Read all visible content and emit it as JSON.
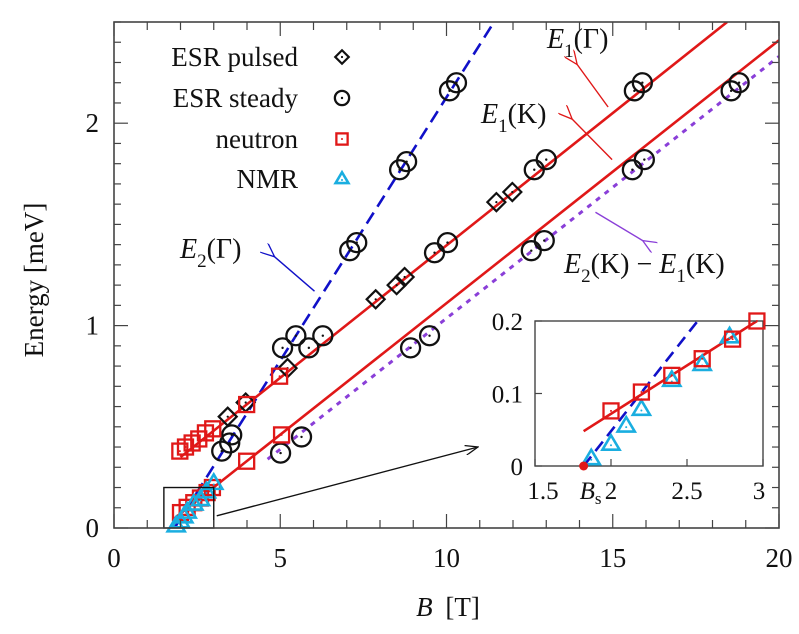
{
  "chart_data": {
    "type": "scatter",
    "title": "",
    "xlabel_symbol": "B",
    "xlabel_unit": "[T]",
    "ylabel": "Energy [meV]",
    "xlim": [
      0,
      20
    ],
    "ylim": [
      0,
      2.5
    ],
    "x_ticks": [
      0,
      5,
      10,
      15,
      20
    ],
    "y_ticks": [
      0,
      1,
      2
    ],
    "x_minor_step": 1,
    "y_minor_step": 0.1,
    "legend_position": "top-left",
    "colors": {
      "esr": "#111111",
      "neutron": "#e01818",
      "nmr": "#1aaee0",
      "e2gamma": "#1010c8",
      "e1": "#e01818",
      "diff": "#8a3fd8",
      "annot_e2gamma": "#1010c8",
      "annot_e1": "#e01818",
      "annot_diff": "#8a3fd8"
    },
    "series": [
      {
        "name": "ESR pulsed",
        "marker": "diamond",
        "points": [
          [
            3.42,
            0.55
          ],
          [
            3.96,
            0.62
          ],
          [
            5.22,
            0.79
          ],
          [
            7.87,
            1.13
          ],
          [
            8.5,
            1.2
          ],
          [
            8.74,
            1.24
          ],
          [
            11.5,
            1.61
          ],
          [
            11.98,
            1.66
          ]
        ]
      },
      {
        "name": "ESR steady",
        "marker": "circle",
        "points": [
          [
            3.24,
            0.38
          ],
          [
            3.48,
            0.42
          ],
          [
            3.54,
            0.46
          ],
          [
            5.01,
            0.37
          ],
          [
            5.64,
            0.45
          ],
          [
            5.07,
            0.89
          ],
          [
            5.47,
            0.95
          ],
          [
            5.86,
            0.89
          ],
          [
            6.28,
            0.95
          ],
          [
            7.09,
            1.37
          ],
          [
            7.3,
            1.41
          ],
          [
            8.59,
            1.77
          ],
          [
            8.8,
            1.81
          ],
          [
            10.09,
            2.16
          ],
          [
            10.3,
            2.2
          ],
          [
            8.92,
            0.89
          ],
          [
            9.49,
            0.95
          ],
          [
            9.64,
            1.36
          ],
          [
            10.03,
            1.41
          ],
          [
            12.55,
            1.37
          ],
          [
            12.94,
            1.42
          ],
          [
            12.64,
            1.77
          ],
          [
            13.0,
            1.82
          ],
          [
            15.59,
            1.77
          ],
          [
            15.95,
            1.82
          ],
          [
            15.65,
            2.16
          ],
          [
            15.89,
            2.2
          ],
          [
            18.56,
            2.16
          ],
          [
            18.8,
            2.2
          ]
        ]
      },
      {
        "name": "neutron",
        "marker": "square",
        "points": [
          [
            1.98,
            0.38
          ],
          [
            2.15,
            0.4
          ],
          [
            2.35,
            0.42
          ],
          [
            2.55,
            0.44
          ],
          [
            2.75,
            0.47
          ],
          [
            2.97,
            0.49
          ],
          [
            3.99,
            0.61
          ],
          [
            4.98,
            0.75
          ],
          [
            2.0,
            0.076
          ],
          [
            2.2,
            0.102
          ],
          [
            2.4,
            0.125
          ],
          [
            2.6,
            0.148
          ],
          [
            2.8,
            0.175
          ],
          [
            2.96,
            0.2
          ],
          [
            3.99,
            0.33
          ],
          [
            5.04,
            0.46
          ]
        ]
      },
      {
        "name": "NMR",
        "marker": "triangle",
        "points": [
          [
            1.87,
            0.01
          ],
          [
            2.0,
            0.03
          ],
          [
            2.1,
            0.055
          ],
          [
            2.2,
            0.078
          ],
          [
            2.4,
            0.118
          ],
          [
            2.6,
            0.14
          ],
          [
            2.78,
            0.178
          ],
          [
            3.0,
            0.22
          ]
        ]
      }
    ],
    "lines": [
      {
        "name": "E2(Gamma)",
        "style": "dashed",
        "color_key": "e2gamma",
        "from": [
          1.82,
          0
        ],
        "to": [
          11.43,
          2.5
        ]
      },
      {
        "name": "E1(Gamma)",
        "style": "solid",
        "color_key": "e1",
        "from": [
          2.0,
          0.35
        ],
        "to": [
          18.44,
          2.5
        ]
      },
      {
        "name": "E1(K)",
        "style": "solid",
        "color_key": "e1",
        "from": [
          1.82,
          0.048
        ],
        "to": [
          20,
          2.41
        ]
      },
      {
        "name": "E2(K)-E1(K)",
        "style": "dotted",
        "color_key": "diff",
        "from": [
          4.62,
          0.34
        ],
        "to": [
          20,
          2.33
        ]
      }
    ],
    "annotations": [
      {
        "id": "e2gamma",
        "main": "E",
        "sub": "2",
        "rest": "(Γ)",
        "color_key": "annot_e2gamma",
        "arrow_from": [
          6.03,
          1.17
        ],
        "arrow_to": [
          4.83,
          1.34
        ]
      },
      {
        "id": "e1gamma",
        "main": "E",
        "sub": "1",
        "rest": "(Γ)",
        "color_key": "annot_e1",
        "arrow_from": [
          14.86,
          2.08
        ],
        "arrow_to": [
          13.93,
          2.29
        ]
      },
      {
        "id": "e1k",
        "main": "E",
        "sub": "1",
        "rest": "(K)",
        "color_key": "annot_e1",
        "arrow_from": [
          14.98,
          1.82
        ],
        "arrow_to": [
          13.78,
          2.02
        ]
      },
      {
        "id": "diff",
        "main": "E",
        "sub": "2",
        "rest": "(K) − ",
        "main2": "E",
        "sub2": "1",
        "rest2": "(K)",
        "color_key": "annot_diff",
        "arrow_from": [
          14.48,
          1.56
        ],
        "arrow_to": [
          15.9,
          1.42
        ]
      }
    ],
    "inset": {
      "xlim": [
        1.5,
        3
      ],
      "ylim": [
        0,
        0.2
      ],
      "x_ticks": [
        1.5,
        2,
        2.5,
        3
      ],
      "x_tick_labels": [
        "1.5",
        "2",
        "2.5",
        "3"
      ],
      "y_ticks": [
        0,
        0.1,
        0.2
      ],
      "y_tick_labels": [
        "0",
        "0.1",
        "0.2"
      ],
      "bs_label_main": "B",
      "bs_label_sub": "s",
      "bs_value": 1.82,
      "neutron_points": [
        [
          2.0,
          0.076
        ],
        [
          2.2,
          0.102
        ],
        [
          2.4,
          0.125
        ],
        [
          2.6,
          0.148
        ],
        [
          2.8,
          0.175
        ],
        [
          2.96,
          0.2
        ]
      ],
      "nmr_points": [
        [
          1.87,
          0.01
        ],
        [
          2.0,
          0.03
        ],
        [
          2.1,
          0.055
        ],
        [
          2.2,
          0.078
        ],
        [
          2.4,
          0.118
        ],
        [
          2.6,
          0.14
        ],
        [
          2.78,
          0.178
        ]
      ],
      "red_line": {
        "from": [
          1.82,
          0.048
        ],
        "to": [
          2.96,
          0.2
        ]
      },
      "blue_line": {
        "from": [
          1.82,
          0
        ],
        "to": [
          2.57,
          0.2
        ]
      },
      "zoom_box": {
        "xlim": [
          1.5,
          3
        ],
        "ylim": [
          0,
          0.2
        ]
      }
    }
  }
}
